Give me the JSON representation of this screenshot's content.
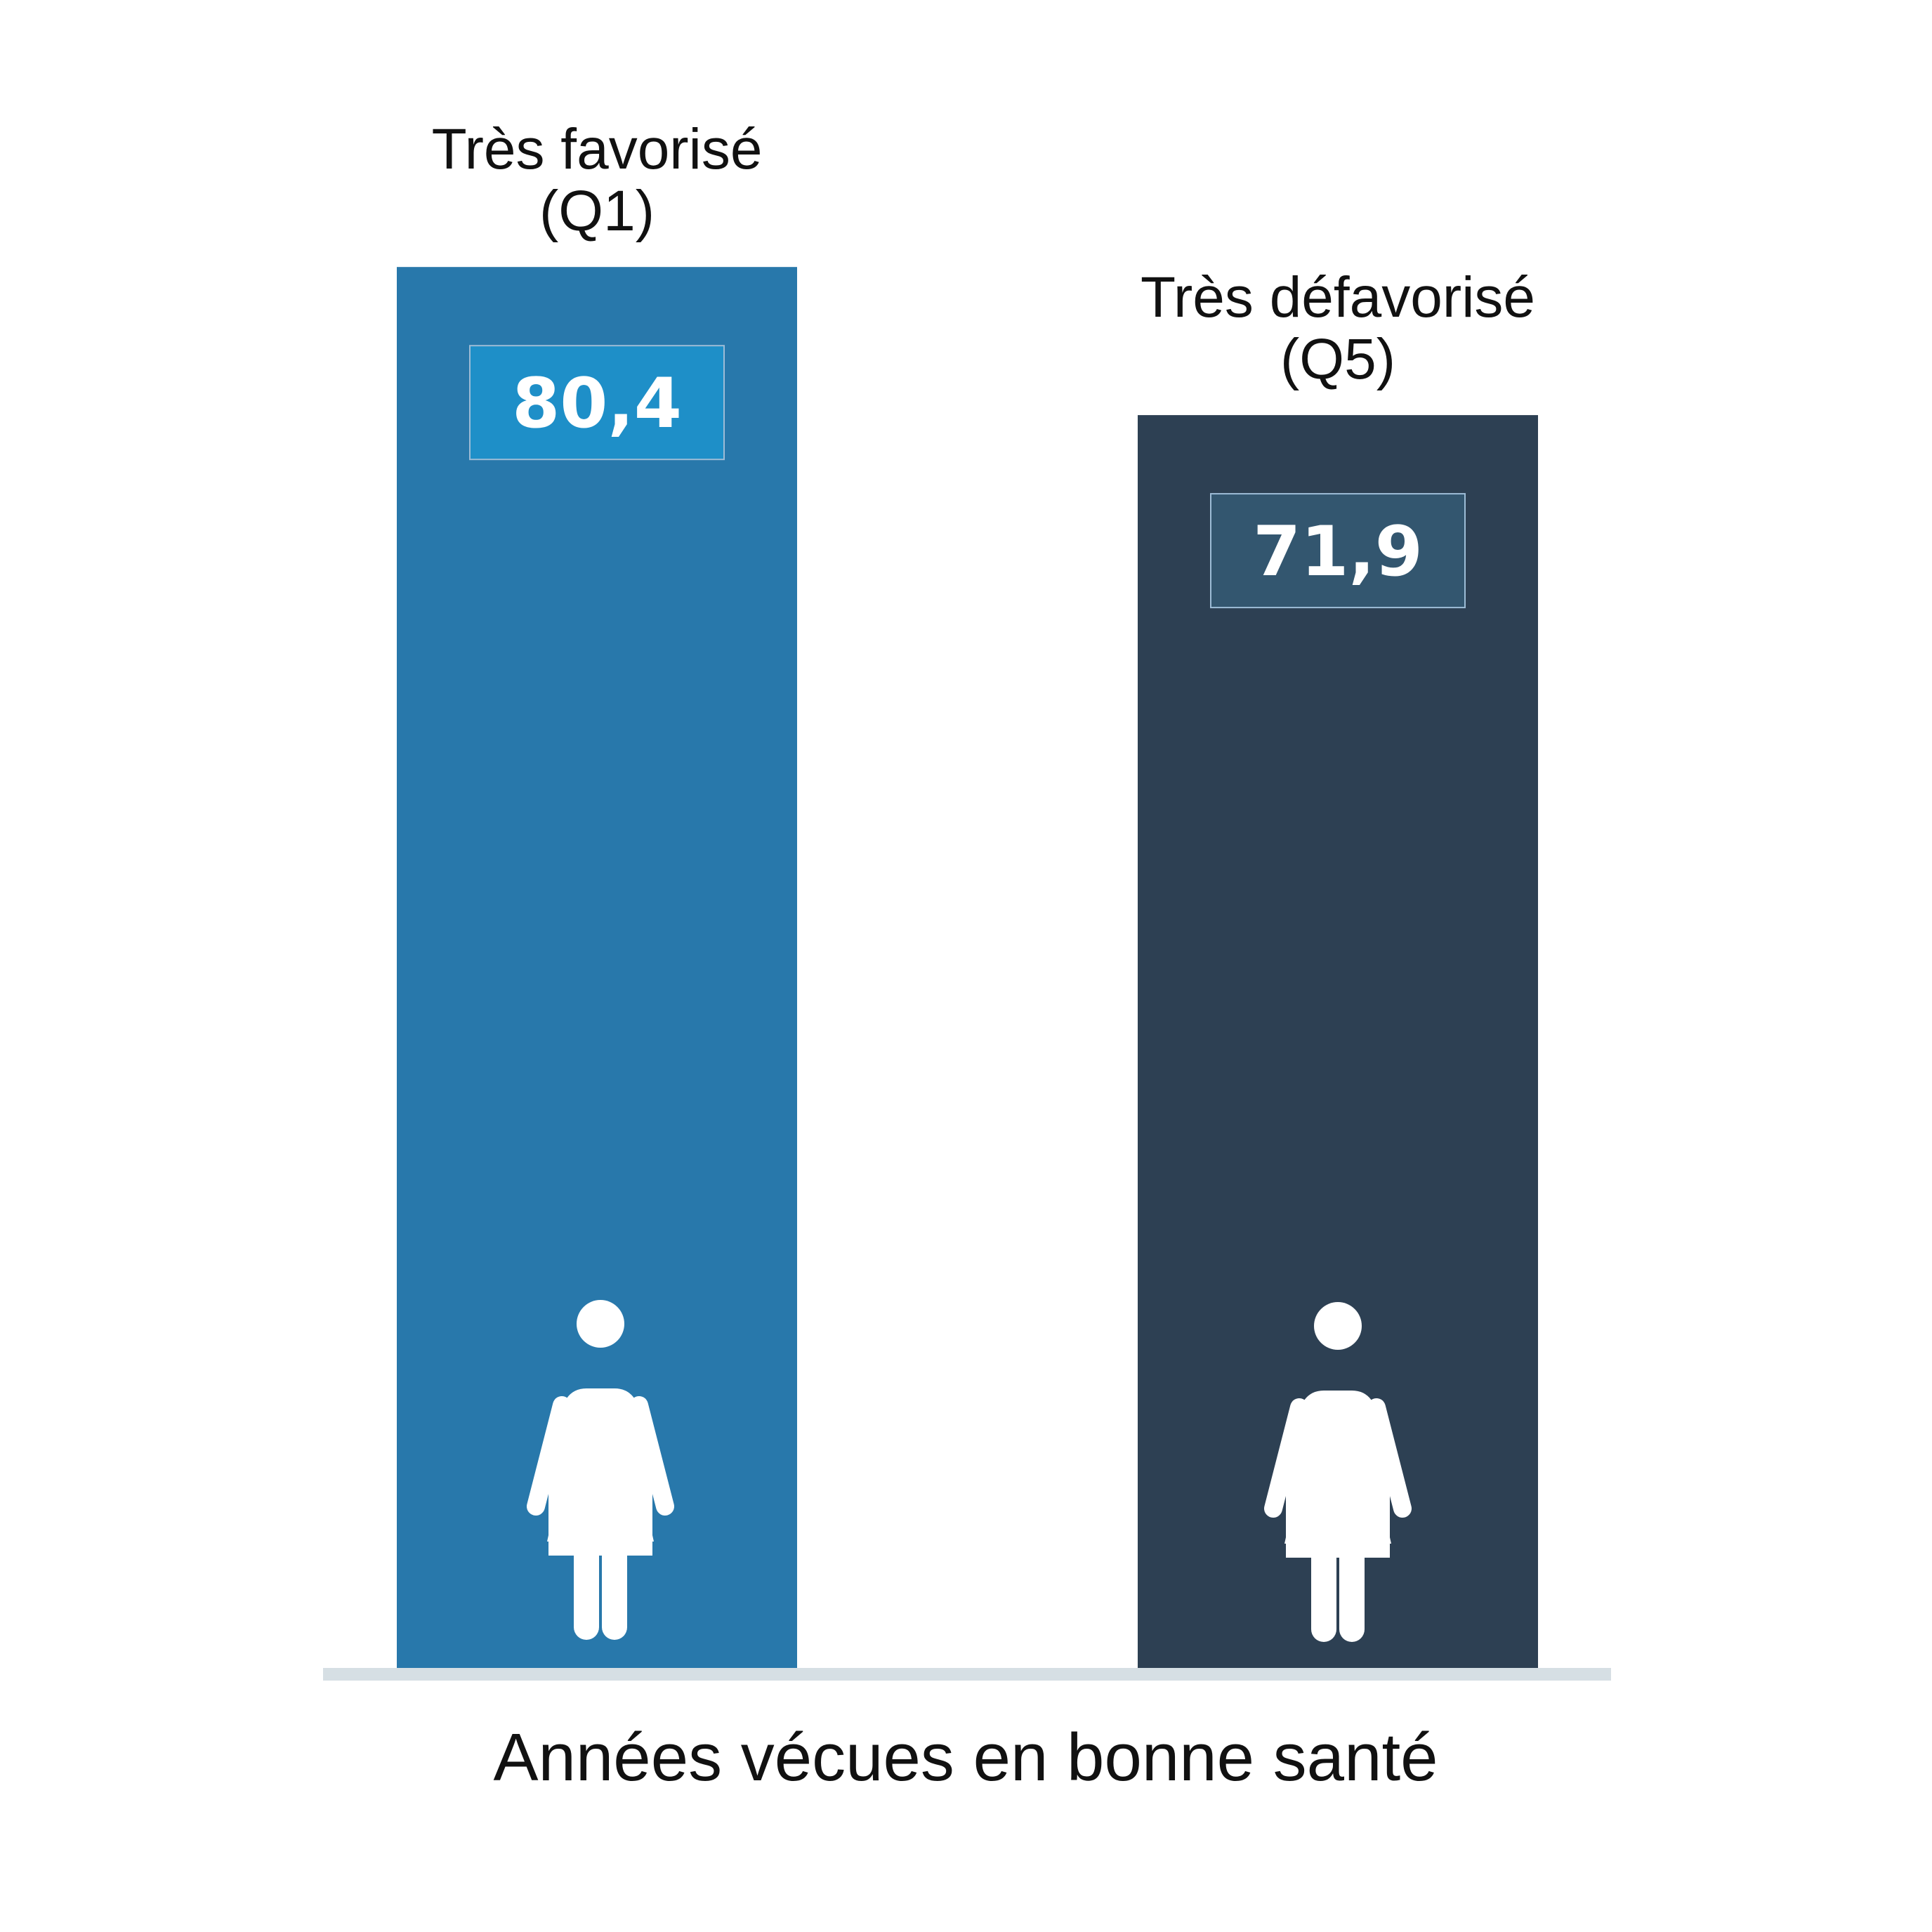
{
  "chart_data": {
    "type": "bar",
    "xlabel": "Années vécues en bonne santé",
    "ylim": [
      0,
      90
    ],
    "categories": [
      {
        "line1": "Très favorisé",
        "line2": "(Q1)"
      },
      {
        "line1": "Très défavorisé",
        "line2": "(Q5)"
      }
    ],
    "values": [
      80.4,
      71.9
    ],
    "value_labels": [
      "80,4",
      "71,9"
    ],
    "bar_colors": [
      "#2878ab",
      "#2d4053"
    ],
    "value_box_colors": [
      "#1e8fc8",
      "#33566f"
    ],
    "value_box_border": "#9dbcd6",
    "baseline_color": "#d6dfe4",
    "icon": "woman-icon",
    "icon_color": "#ffffff"
  }
}
